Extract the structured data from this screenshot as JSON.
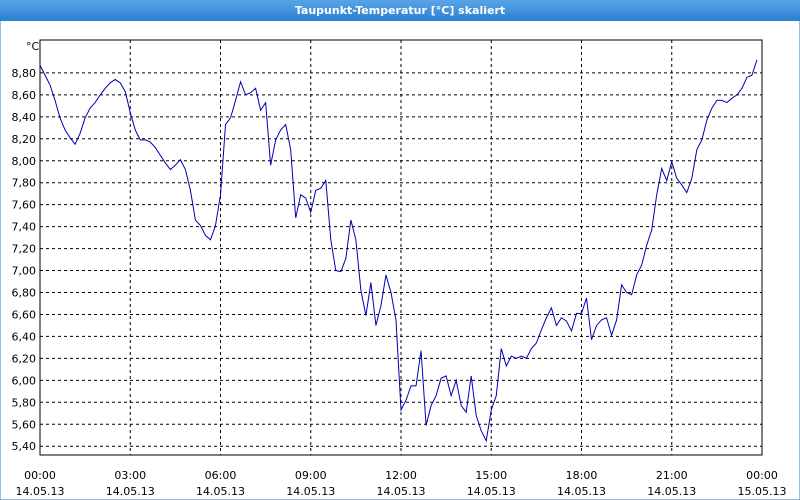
{
  "chart_data": {
    "type": "line",
    "title": "Taupunkt-Temperatur [°C] skaliert",
    "unit": "°C",
    "color": "#0000b4",
    "grid": true,
    "xlim": [
      0,
      1440
    ],
    "xticks": [
      {
        "value": 0,
        "label": "00:00"
      },
      {
        "value": 180,
        "label": "03:00"
      },
      {
        "value": 360,
        "label": "06:00"
      },
      {
        "value": 540,
        "label": "09:00"
      },
      {
        "value": 720,
        "label": "12:00"
      },
      {
        "value": 900,
        "label": "15:00"
      },
      {
        "value": 1080,
        "label": "18:00"
      },
      {
        "value": 1260,
        "label": "21:00"
      },
      {
        "value": 1440,
        "label": "00:00"
      }
    ],
    "xtick_dates": [
      "14.05.13",
      "14.05.13",
      "14.05.13",
      "14.05.13",
      "14.05.13",
      "14.05.13",
      "14.05.13",
      "14.05.13",
      "15.05.13"
    ],
    "ylim": [
      5.32,
      9.1
    ],
    "yticks": [
      {
        "value": 5.4,
        "label": "5,40"
      },
      {
        "value": 5.6,
        "label": "5,60"
      },
      {
        "value": 5.8,
        "label": "5,80"
      },
      {
        "value": 6.0,
        "label": "6,00"
      },
      {
        "value": 6.2,
        "label": "6,20"
      },
      {
        "value": 6.4,
        "label": "6,40"
      },
      {
        "value": 6.6,
        "label": "6,60"
      },
      {
        "value": 6.8,
        "label": "6,80"
      },
      {
        "value": 7.0,
        "label": "7,00"
      },
      {
        "value": 7.2,
        "label": "7,20"
      },
      {
        "value": 7.4,
        "label": "7,40"
      },
      {
        "value": 7.6,
        "label": "7,60"
      },
      {
        "value": 7.8,
        "label": "7,80"
      },
      {
        "value": 8.0,
        "label": "8,00"
      },
      {
        "value": 8.2,
        "label": "8,20"
      },
      {
        "value": 8.4,
        "label": "8,40"
      },
      {
        "value": 8.6,
        "label": "8,60"
      },
      {
        "value": 8.8,
        "label": "8,80"
      }
    ],
    "x": [
      0,
      10,
      20,
      30,
      40,
      50,
      60,
      70,
      80,
      90,
      100,
      110,
      120,
      130,
      140,
      150,
      160,
      170,
      180,
      190,
      200,
      210,
      220,
      230,
      240,
      250,
      260,
      270,
      280,
      290,
      300,
      310,
      320,
      330,
      340,
      350,
      360,
      370,
      380,
      390,
      400,
      410,
      420,
      430,
      440,
      450,
      460,
      470,
      480,
      490,
      500,
      510,
      520,
      530,
      540,
      550,
      560,
      570,
      580,
      590,
      600,
      610,
      620,
      630,
      640,
      650,
      660,
      670,
      680,
      690,
      700,
      710,
      720,
      730,
      740,
      750,
      760,
      770,
      780,
      790,
      800,
      810,
      820,
      830,
      840,
      850,
      860,
      870,
      880,
      890,
      900,
      910,
      920,
      930,
      940,
      950,
      960,
      970,
      980,
      990,
      1000,
      1010,
      1020,
      1030,
      1040,
      1050,
      1060,
      1070,
      1080,
      1090,
      1100,
      1110,
      1120,
      1130,
      1140,
      1150,
      1160,
      1170,
      1180,
      1190,
      1200,
      1210,
      1220,
      1230,
      1240,
      1250,
      1260,
      1270,
      1280,
      1290,
      1300,
      1310,
      1320,
      1330,
      1340,
      1350,
      1360,
      1370,
      1380,
      1390,
      1400,
      1410,
      1420,
      1430
    ],
    "values": [
      8.87,
      8.78,
      8.69,
      8.55,
      8.39,
      8.28,
      8.21,
      8.15,
      8.25,
      8.39,
      8.48,
      8.53,
      8.6,
      8.66,
      8.71,
      8.74,
      8.71,
      8.63,
      8.44,
      8.28,
      8.19,
      8.19,
      8.17,
      8.12,
      8.05,
      7.98,
      7.92,
      7.96,
      8.01,
      7.92,
      7.73,
      7.46,
      7.41,
      7.32,
      7.28,
      7.41,
      7.69,
      8.33,
      8.39,
      8.55,
      8.72,
      8.6,
      8.62,
      8.66,
      8.46,
      8.53,
      7.96,
      8.19,
      8.28,
      8.33,
      8.1,
      7.48,
      7.69,
      7.66,
      7.53,
      7.73,
      7.75,
      7.82,
      7.28,
      7.0,
      6.99,
      7.11,
      7.46,
      7.28,
      6.82,
      6.59,
      6.89,
      6.5,
      6.68,
      6.96,
      6.8,
      6.55,
      5.73,
      5.82,
      5.95,
      5.95,
      6.27,
      5.59,
      5.77,
      5.86,
      6.02,
      6.04,
      5.86,
      6.0,
      5.77,
      5.71,
      6.04,
      5.68,
      5.54,
      5.45,
      5.73,
      5.86,
      6.29,
      6.13,
      6.22,
      6.2,
      6.22,
      6.2,
      6.29,
      6.34,
      6.46,
      6.57,
      6.66,
      6.5,
      6.57,
      6.54,
      6.45,
      6.61,
      6.61,
      6.75,
      6.37,
      6.5,
      6.55,
      6.57,
      6.41,
      6.55,
      6.87,
      6.8,
      6.78,
      6.96,
      7.05,
      7.23,
      7.37,
      7.69,
      7.93,
      7.82,
      7.99,
      7.84,
      7.78,
      7.71,
      7.84,
      8.1,
      8.19,
      8.37,
      8.48,
      8.55,
      8.55,
      8.53,
      8.57,
      8.6,
      8.66,
      8.76,
      8.78,
      8.92
    ]
  }
}
